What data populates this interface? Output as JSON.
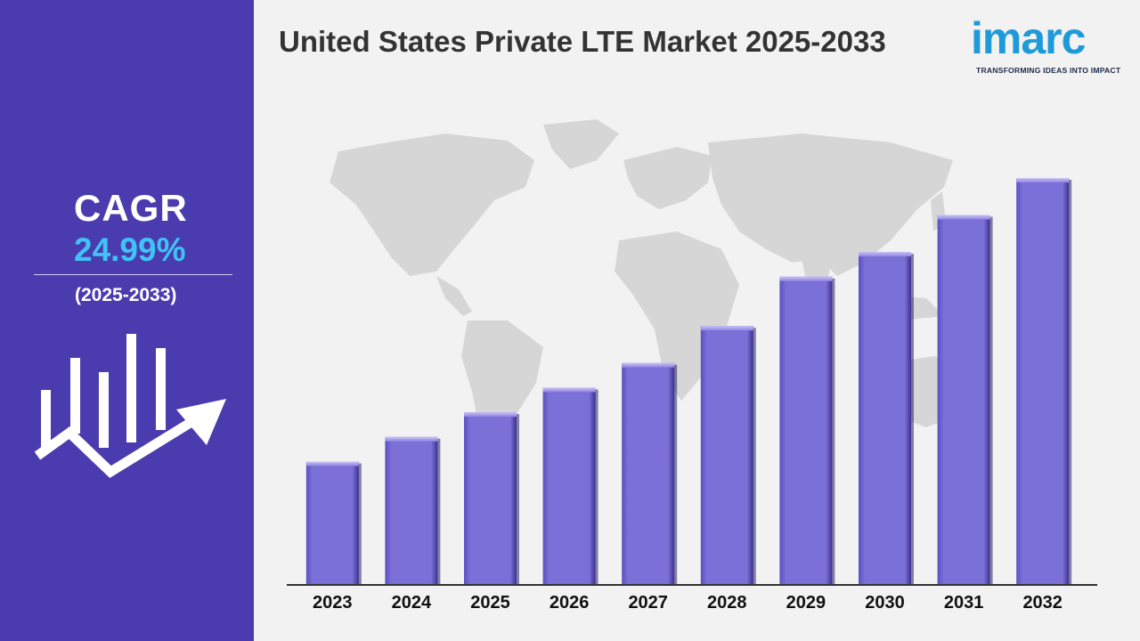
{
  "title": "United States Private LTE Market 2025-2033",
  "logo": {
    "text": "imarc",
    "tagline": "TRANSFORMING IDEAS INTO IMPACT"
  },
  "sidebar": {
    "cagr_label": "CAGR",
    "cagr_value": "24.99%",
    "period": "(2025-2033)",
    "icon": "growth-chart-arrow-icon"
  },
  "colors": {
    "sidebar": "#4a3cae",
    "bar": "#7b6fd8",
    "accent": "#3fc3f4",
    "background": "#f2f2f2",
    "brand": "#1e9ad9"
  },
  "chart_data": {
    "type": "bar",
    "title": "United States Private LTE Market 2025-2033",
    "xlabel": "",
    "ylabel": "",
    "categories": [
      "2023",
      "2024",
      "2025",
      "2026",
      "2027",
      "2028",
      "2029",
      "2030",
      "2031",
      "2032"
    ],
    "values": [
      1.0,
      1.2,
      1.4,
      1.6,
      1.8,
      2.1,
      2.5,
      2.7,
      3.0,
      3.3
    ],
    "ylim": [
      0,
      3.5
    ],
    "grid": false,
    "legend": "none"
  }
}
